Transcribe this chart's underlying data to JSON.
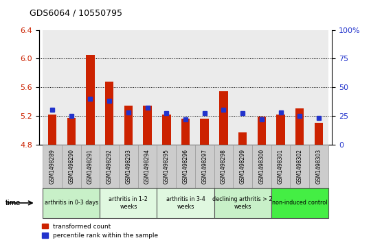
{
  "title": "GDS6064 / 10550795",
  "samples": [
    "GSM1498289",
    "GSM1498290",
    "GSM1498291",
    "GSM1498292",
    "GSM1498293",
    "GSM1498294",
    "GSM1498295",
    "GSM1498296",
    "GSM1498297",
    "GSM1498298",
    "GSM1498299",
    "GSM1498300",
    "GSM1498301",
    "GSM1498302",
    "GSM1498303"
  ],
  "transformed_count": [
    5.22,
    5.17,
    6.05,
    5.68,
    5.34,
    5.34,
    5.22,
    5.16,
    5.16,
    5.54,
    4.97,
    5.19,
    5.22,
    5.3,
    5.1
  ],
  "percentile_rank": [
    30,
    25,
    40,
    38,
    28,
    32,
    27,
    22,
    27,
    30,
    27,
    22,
    28,
    25,
    23
  ],
  "ylim_left": [
    4.8,
    6.4
  ],
  "ylim_right": [
    0,
    100
  ],
  "yticks_left": [
    4.8,
    5.2,
    5.6,
    6.0,
    6.4
  ],
  "yticks_right": [
    0,
    25,
    50,
    75,
    100
  ],
  "groups": [
    {
      "label": "arthritis in 0-3 days",
      "indices": [
        0,
        1,
        2
      ],
      "color": "#c8f0c8"
    },
    {
      "label": "arthritis in 1-2\nweeks",
      "indices": [
        3,
        4,
        5
      ],
      "color": "#e0f8e0"
    },
    {
      "label": "arthritis in 3-4\nweeks",
      "indices": [
        6,
        7,
        8
      ],
      "color": "#e0f8e0"
    },
    {
      "label": "declining arthritis > 2\nweeks",
      "indices": [
        9,
        10,
        11
      ],
      "color": "#c8f0c8"
    },
    {
      "label": "non-induced control",
      "indices": [
        12,
        13,
        14
      ],
      "color": "#44ee44"
    }
  ],
  "bar_color": "#cc2200",
  "dot_color": "#2233cc",
  "bg_plot": "#ffffff",
  "tick_label_color_left": "#cc2200",
  "tick_label_color_right": "#2233cc",
  "baseline": 4.8,
  "sample_box_color": "#cccccc",
  "legend_items": [
    {
      "color": "#cc2200",
      "label": "transformed count"
    },
    {
      "color": "#2233cc",
      "label": "percentile rank within the sample"
    }
  ]
}
